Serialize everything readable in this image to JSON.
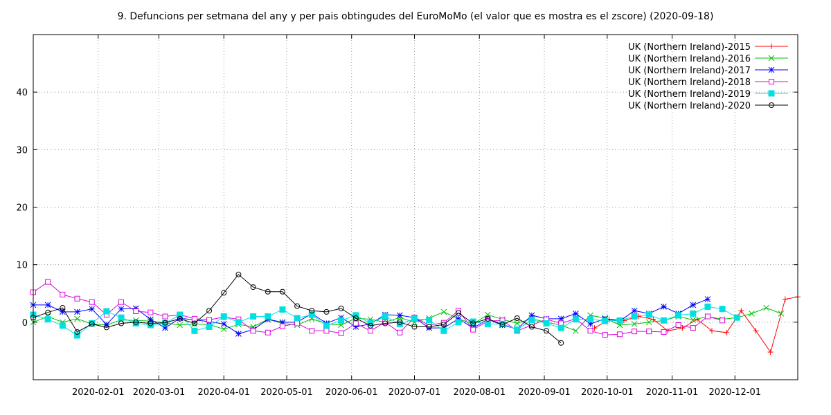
{
  "chart_data": {
    "type": "line",
    "title": "9. Defuncions per setmana del any y per pais obtingudes del EuroMoMo (el valor que es mostra es el zscore) (2020-09-18)",
    "xlabel": "",
    "ylabel": "",
    "x_axis_type": "date",
    "xlim": [
      "2020-01-01",
      "2020-12-31"
    ],
    "ylim": [
      -10,
      50
    ],
    "x_ticks": [
      "2020-02-01",
      "2020-03-01",
      "2020-04-01",
      "2020-05-01",
      "2020-06-01",
      "2020-07-01",
      "2020-08-01",
      "2020-09-01",
      "2020-10-01",
      "2020-11-01",
      "2020-12-01"
    ],
    "y_ticks": [
      0,
      10,
      20,
      30,
      40
    ],
    "grid": true,
    "legend_position": "top-right",
    "series": [
      {
        "name": "UK (Northern Ireland)-2015",
        "color": "#ff0000",
        "marker": "plus",
        "points": [
          [
            "2020-09-25",
            -1.0
          ],
          [
            "2020-10-02",
            0.5
          ],
          [
            "2020-10-09",
            0.3
          ],
          [
            "2020-10-16",
            1.0
          ],
          [
            "2020-10-23",
            0.5
          ],
          [
            "2020-10-30",
            -1.5
          ],
          [
            "2020-11-06",
            -1.0
          ],
          [
            "2020-11-13",
            0.5
          ],
          [
            "2020-11-20",
            -1.5
          ],
          [
            "2020-11-27",
            -1.8
          ],
          [
            "2020-12-04",
            2.0
          ],
          [
            "2020-12-11",
            -1.5
          ],
          [
            "2020-12-18",
            -5.2
          ],
          [
            "2020-12-25",
            4.0
          ],
          [
            "2021-01-01",
            4.4
          ]
        ]
      },
      {
        "name": "UK (Northern Ireland)-2016",
        "color": "#00c000",
        "marker": "cross",
        "points": [
          [
            "2020-01-01",
            0.0
          ],
          [
            "2020-01-08",
            1.0
          ],
          [
            "2020-01-15",
            0.0
          ],
          [
            "2020-01-22",
            0.6
          ],
          [
            "2020-01-29",
            -0.3
          ],
          [
            "2020-02-05",
            -0.5
          ],
          [
            "2020-02-12",
            0.4
          ],
          [
            "2020-02-19",
            0.3
          ],
          [
            "2020-02-26",
            0.2
          ],
          [
            "2020-03-04",
            -0.1
          ],
          [
            "2020-03-11",
            -0.5
          ],
          [
            "2020-03-18",
            -0.3
          ],
          [
            "2020-03-25",
            -0.4
          ],
          [
            "2020-04-01",
            -1.2
          ],
          [
            "2020-04-08",
            -0.4
          ],
          [
            "2020-04-15",
            -0.8
          ],
          [
            "2020-04-22",
            0.5
          ],
          [
            "2020-04-29",
            -0.2
          ],
          [
            "2020-05-06",
            -0.5
          ],
          [
            "2020-05-13",
            0.6
          ],
          [
            "2020-05-20",
            -0.3
          ],
          [
            "2020-05-27",
            -0.5
          ],
          [
            "2020-06-03",
            0.7
          ],
          [
            "2020-06-10",
            0.5
          ],
          [
            "2020-06-17",
            0.0
          ],
          [
            "2020-06-24",
            0.8
          ],
          [
            "2020-07-01",
            0.0
          ],
          [
            "2020-07-08",
            0.7
          ],
          [
            "2020-07-15",
            1.8
          ],
          [
            "2020-07-22",
            0.6
          ],
          [
            "2020-07-29",
            -0.3
          ],
          [
            "2020-08-05",
            1.3
          ],
          [
            "2020-08-12",
            0.5
          ],
          [
            "2020-08-19",
            -0.2
          ],
          [
            "2020-08-26",
            0.6
          ],
          [
            "2020-09-02",
            0.0
          ],
          [
            "2020-09-09",
            -0.5
          ],
          [
            "2020-09-16",
            -1.5
          ],
          [
            "2020-09-23",
            1.2
          ],
          [
            "2020-09-30",
            0.7
          ],
          [
            "2020-10-07",
            -0.5
          ],
          [
            "2020-10-14",
            -0.3
          ],
          [
            "2020-10-21",
            0.0
          ],
          [
            "2020-10-28",
            0.3
          ],
          [
            "2020-11-04",
            1.0
          ],
          [
            "2020-11-11",
            0.4
          ],
          [
            "2020-11-18",
            1.0
          ],
          [
            "2020-11-25",
            0.5
          ],
          [
            "2020-12-02",
            0.8
          ],
          [
            "2020-12-09",
            1.5
          ],
          [
            "2020-12-16",
            2.5
          ],
          [
            "2020-12-23",
            1.5
          ]
        ]
      },
      {
        "name": "UK (Northern Ireland)-2017",
        "color": "#0000ff",
        "marker": "star",
        "points": [
          [
            "2020-01-01",
            3.0
          ],
          [
            "2020-01-08",
            3.0
          ],
          [
            "2020-01-15",
            1.8
          ],
          [
            "2020-01-22",
            1.8
          ],
          [
            "2020-01-29",
            2.3
          ],
          [
            "2020-02-05",
            -0.4
          ],
          [
            "2020-02-12",
            2.3
          ],
          [
            "2020-02-19",
            2.4
          ],
          [
            "2020-02-26",
            0.5
          ],
          [
            "2020-03-04",
            -1.0
          ],
          [
            "2020-03-11",
            0.7
          ],
          [
            "2020-03-18",
            0.4
          ],
          [
            "2020-03-25",
            0.1
          ],
          [
            "2020-04-01",
            -0.3
          ],
          [
            "2020-04-08",
            -2.0
          ],
          [
            "2020-04-15",
            -1.3
          ],
          [
            "2020-04-22",
            0.5
          ],
          [
            "2020-04-29",
            0.0
          ],
          [
            "2020-05-06",
            0.0
          ],
          [
            "2020-05-13",
            1.5
          ],
          [
            "2020-05-20",
            -0.2
          ],
          [
            "2020-05-27",
            0.8
          ],
          [
            "2020-06-03",
            -0.8
          ],
          [
            "2020-06-10",
            -0.3
          ],
          [
            "2020-06-17",
            1.3
          ],
          [
            "2020-06-24",
            1.2
          ],
          [
            "2020-07-01",
            0.8
          ],
          [
            "2020-07-08",
            -1.0
          ],
          [
            "2020-07-15",
            -1.0
          ],
          [
            "2020-07-22",
            0.6
          ],
          [
            "2020-07-29",
            -1.0
          ],
          [
            "2020-08-05",
            0.5
          ],
          [
            "2020-08-12",
            -0.5
          ],
          [
            "2020-08-19",
            -1.2
          ],
          [
            "2020-08-26",
            1.2
          ],
          [
            "2020-09-02",
            0.6
          ],
          [
            "2020-09-09",
            0.6
          ],
          [
            "2020-09-16",
            1.5
          ],
          [
            "2020-09-23",
            -0.3
          ],
          [
            "2020-09-30",
            0.6
          ],
          [
            "2020-10-07",
            0.2
          ],
          [
            "2020-10-14",
            2.0
          ],
          [
            "2020-10-21",
            1.5
          ],
          [
            "2020-10-28",
            2.7
          ],
          [
            "2020-11-04",
            1.5
          ],
          [
            "2020-11-11",
            3.0
          ],
          [
            "2020-11-18",
            4.0
          ]
        ]
      },
      {
        "name": "UK (Northern Ireland)-2018",
        "color": "#e000e0",
        "marker": "open-square",
        "points": [
          [
            "2020-01-01",
            5.2
          ],
          [
            "2020-01-08",
            7.0
          ],
          [
            "2020-01-15",
            4.8
          ],
          [
            "2020-01-22",
            4.1
          ],
          [
            "2020-01-29",
            3.5
          ],
          [
            "2020-02-05",
            1.3
          ],
          [
            "2020-02-12",
            3.5
          ],
          [
            "2020-02-19",
            1.9
          ],
          [
            "2020-02-26",
            1.7
          ],
          [
            "2020-03-04",
            1.0
          ],
          [
            "2020-03-11",
            1.3
          ],
          [
            "2020-03-18",
            0.6
          ],
          [
            "2020-03-25",
            0.4
          ],
          [
            "2020-04-01",
            0.9
          ],
          [
            "2020-04-08",
            0.5
          ],
          [
            "2020-04-15",
            -1.5
          ],
          [
            "2020-04-22",
            -1.8
          ],
          [
            "2020-04-29",
            -0.7
          ],
          [
            "2020-05-06",
            -0.2
          ],
          [
            "2020-05-13",
            -1.5
          ],
          [
            "2020-05-20",
            -1.5
          ],
          [
            "2020-05-27",
            -1.9
          ],
          [
            "2020-06-03",
            -0.2
          ],
          [
            "2020-06-10",
            -1.5
          ],
          [
            "2020-06-17",
            0.0
          ],
          [
            "2020-06-24",
            -1.8
          ],
          [
            "2020-07-01",
            0.8
          ],
          [
            "2020-07-08",
            -0.5
          ],
          [
            "2020-07-15",
            -0.1
          ],
          [
            "2020-07-22",
            2.0
          ],
          [
            "2020-07-29",
            -1.3
          ],
          [
            "2020-08-05",
            0.2
          ],
          [
            "2020-08-12",
            0.3
          ],
          [
            "2020-08-19",
            -1.5
          ],
          [
            "2020-08-26",
            -0.5
          ],
          [
            "2020-09-02",
            0.5
          ],
          [
            "2020-09-09",
            -0.2
          ],
          [
            "2020-09-16",
            0.6
          ],
          [
            "2020-09-23",
            -1.5
          ],
          [
            "2020-09-30",
            -2.2
          ],
          [
            "2020-10-07",
            -2.1
          ],
          [
            "2020-10-14",
            -1.6
          ],
          [
            "2020-10-21",
            -1.6
          ],
          [
            "2020-10-28",
            -1.7
          ],
          [
            "2020-11-04",
            -0.5
          ],
          [
            "2020-11-11",
            -1.0
          ],
          [
            "2020-11-18",
            1.0
          ],
          [
            "2020-11-25",
            0.3
          ]
        ]
      },
      {
        "name": "UK (Northern Ireland)-2019",
        "color": "#00e0e0",
        "marker": "filled-square",
        "points": [
          [
            "2020-01-01",
            1.3
          ],
          [
            "2020-01-08",
            0.5
          ],
          [
            "2020-01-15",
            -0.6
          ],
          [
            "2020-01-22",
            -2.3
          ],
          [
            "2020-01-29",
            -0.2
          ],
          [
            "2020-02-05",
            1.9
          ],
          [
            "2020-02-12",
            0.8
          ],
          [
            "2020-02-19",
            -0.2
          ],
          [
            "2020-02-26",
            -0.5
          ],
          [
            "2020-03-04",
            -0.2
          ],
          [
            "2020-03-11",
            1.3
          ],
          [
            "2020-03-18",
            -1.5
          ],
          [
            "2020-03-25",
            -0.8
          ],
          [
            "2020-04-01",
            1.0
          ],
          [
            "2020-04-08",
            0.0
          ],
          [
            "2020-04-15",
            1.0
          ],
          [
            "2020-04-22",
            1.0
          ],
          [
            "2020-04-29",
            2.2
          ],
          [
            "2020-05-06",
            0.7
          ],
          [
            "2020-05-13",
            1.3
          ],
          [
            "2020-05-20",
            -0.6
          ],
          [
            "2020-05-27",
            0.3
          ],
          [
            "2020-06-03",
            1.2
          ],
          [
            "2020-06-10",
            -0.2
          ],
          [
            "2020-06-17",
            1.0
          ],
          [
            "2020-06-24",
            -0.3
          ],
          [
            "2020-07-01",
            0.6
          ],
          [
            "2020-07-08",
            0.4
          ],
          [
            "2020-07-15",
            -1.5
          ],
          [
            "2020-07-22",
            0.0
          ],
          [
            "2020-07-29",
            0.1
          ],
          [
            "2020-08-05",
            -0.3
          ],
          [
            "2020-08-12",
            -0.3
          ],
          [
            "2020-08-19",
            -1.3
          ],
          [
            "2020-08-26",
            0.4
          ],
          [
            "2020-09-02",
            -0.2
          ],
          [
            "2020-09-09",
            -1.0
          ],
          [
            "2020-09-16",
            0.5
          ],
          [
            "2020-09-23",
            0.5
          ],
          [
            "2020-09-30",
            0.2
          ],
          [
            "2020-10-07",
            0.3
          ],
          [
            "2020-10-14",
            1.0
          ],
          [
            "2020-10-21",
            1.3
          ],
          [
            "2020-10-28",
            0.3
          ],
          [
            "2020-11-04",
            1.2
          ],
          [
            "2020-11-11",
            1.5
          ],
          [
            "2020-11-18",
            2.7
          ],
          [
            "2020-11-25",
            2.3
          ],
          [
            "2020-12-02",
            0.8
          ]
        ]
      },
      {
        "name": "UK (Northern Ireland)-2020",
        "color": "#000000",
        "marker": "open-circle",
        "points": [
          [
            "2020-01-01",
            0.8
          ],
          [
            "2020-01-08",
            1.7
          ],
          [
            "2020-01-15",
            2.5
          ],
          [
            "2020-01-22",
            -1.7
          ],
          [
            "2020-01-29",
            -0.3
          ],
          [
            "2020-02-05",
            -0.9
          ],
          [
            "2020-02-12",
            -0.2
          ],
          [
            "2020-02-19",
            0.0
          ],
          [
            "2020-02-26",
            -0.2
          ],
          [
            "2020-03-04",
            -0.1
          ],
          [
            "2020-03-11",
            0.6
          ],
          [
            "2020-03-18",
            -0.2
          ],
          [
            "2020-03-25",
            2.0
          ],
          [
            "2020-04-01",
            5.1
          ],
          [
            "2020-04-08",
            8.3
          ],
          [
            "2020-04-15",
            6.1
          ],
          [
            "2020-04-22",
            5.3
          ],
          [
            "2020-04-29",
            5.3
          ],
          [
            "2020-05-06",
            2.8
          ],
          [
            "2020-05-13",
            2.0
          ],
          [
            "2020-05-20",
            1.8
          ],
          [
            "2020-05-27",
            2.4
          ],
          [
            "2020-06-03",
            0.7
          ],
          [
            "2020-06-10",
            -0.6
          ],
          [
            "2020-06-17",
            -0.2
          ],
          [
            "2020-06-24",
            0.0
          ],
          [
            "2020-07-01",
            -0.8
          ],
          [
            "2020-07-08",
            -0.8
          ],
          [
            "2020-07-15",
            -0.4
          ],
          [
            "2020-07-22",
            1.6
          ],
          [
            "2020-07-29",
            -0.2
          ],
          [
            "2020-08-05",
            0.6
          ],
          [
            "2020-08-12",
            -0.4
          ],
          [
            "2020-08-19",
            0.7
          ],
          [
            "2020-08-26",
            -0.8
          ],
          [
            "2020-09-02",
            -1.5
          ],
          [
            "2020-09-09",
            -3.6
          ]
        ]
      }
    ]
  }
}
